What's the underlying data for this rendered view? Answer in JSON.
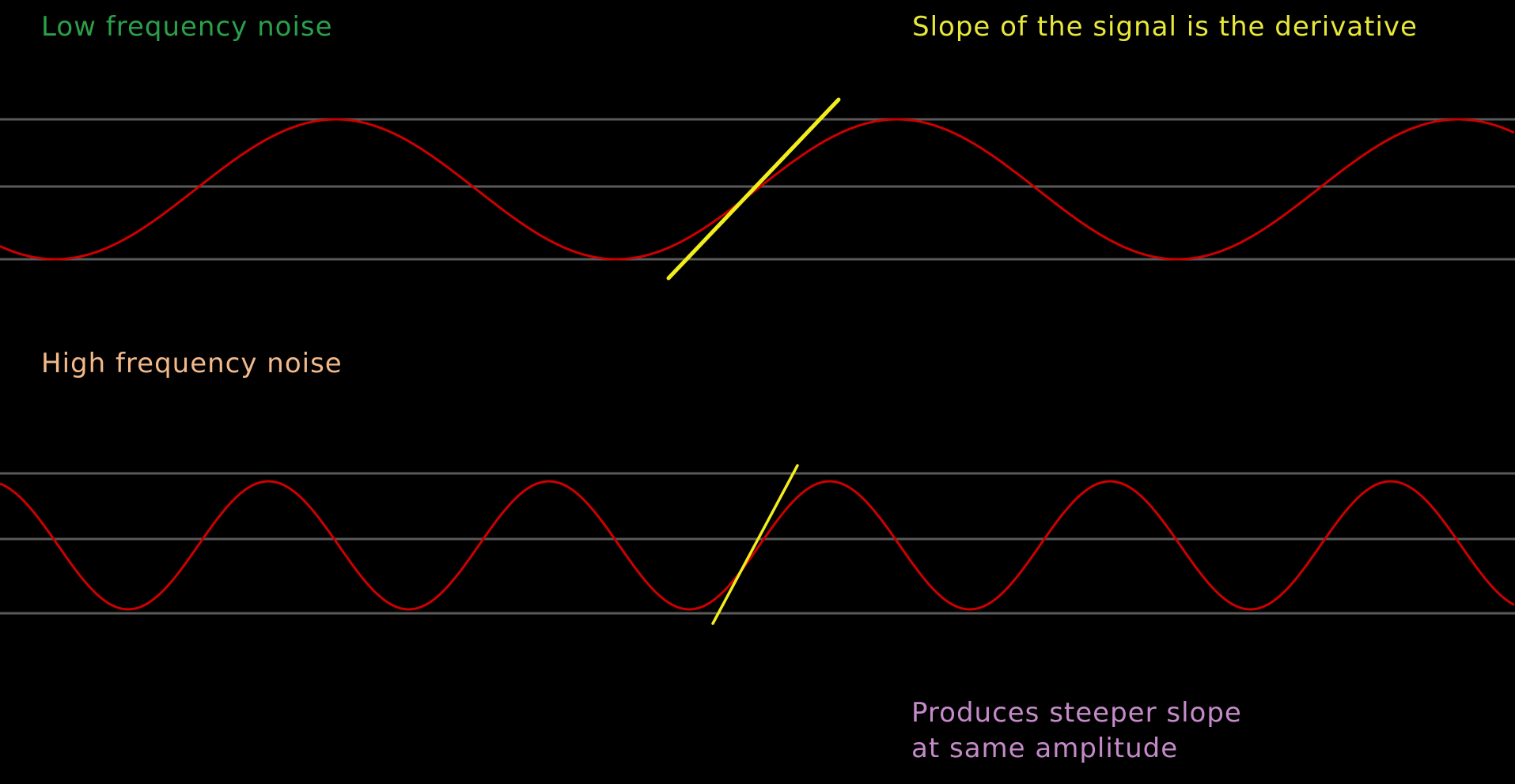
{
  "labels": {
    "low_frequency": "Low frequency noise",
    "slope_note": "Slope of the signal is the derivative",
    "high_frequency": "High frequency noise",
    "steeper_line1": "Produces steeper slope",
    "steeper_line2": "at same amplitude"
  },
  "colors": {
    "background": "#000000",
    "guide_line": "#5a5a5a",
    "signal": "#cc0000",
    "slope": "#f2ee1c",
    "low_label": "#2aa04a",
    "slope_label": "#e8e83a",
    "high_label": "#f2b98a",
    "steeper_label": "#c58ac9"
  },
  "signals": [
    {
      "id": "low",
      "cycles_shown": 2.7
    },
    {
      "id": "high",
      "cycles_shown": 5.4
    }
  ]
}
